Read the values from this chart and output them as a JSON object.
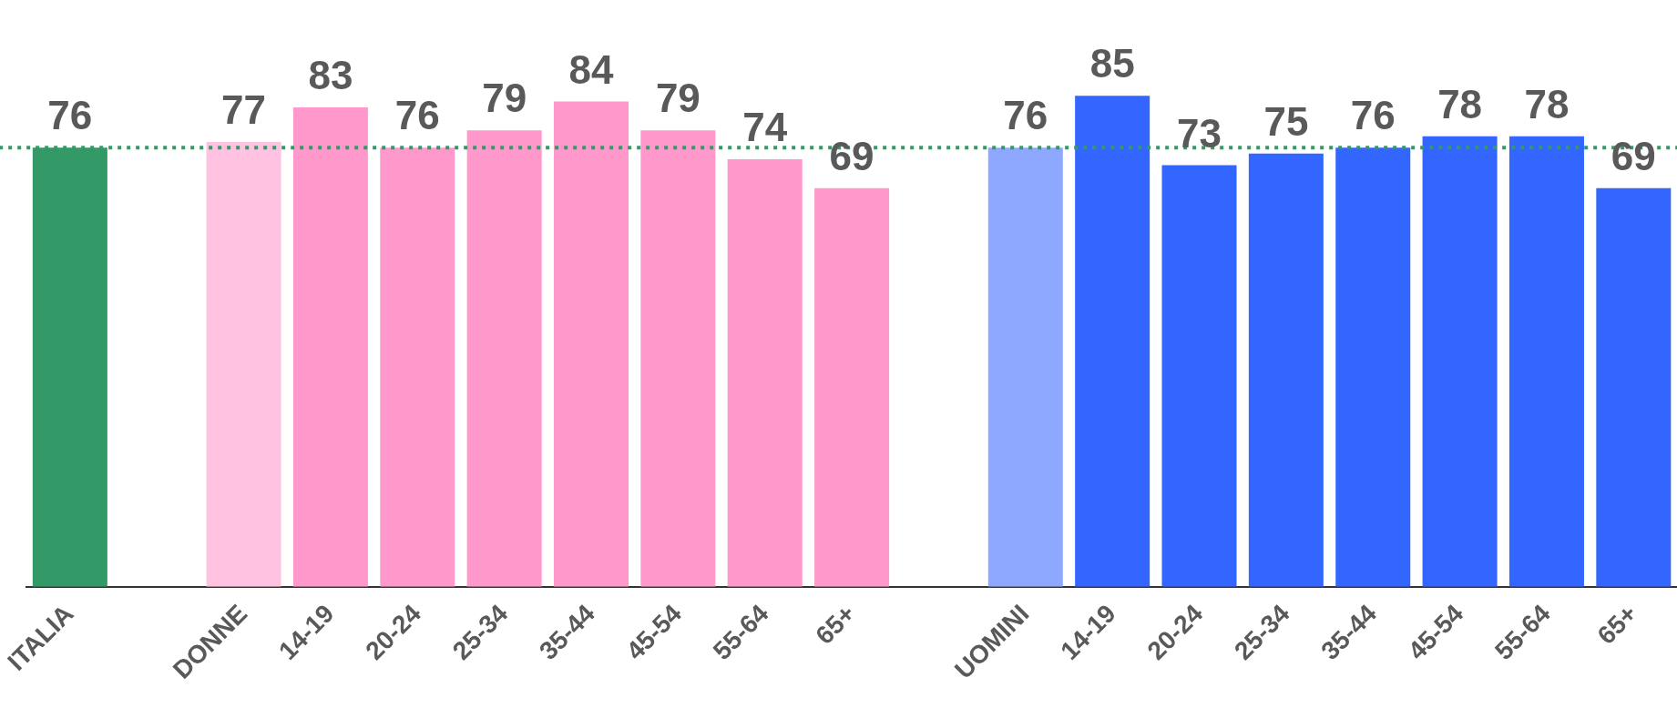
{
  "chart_data": {
    "type": "bar",
    "categories": [
      "ITALIA",
      null,
      "DONNE",
      "14-19",
      "20-24",
      "25-34",
      "35-44",
      "45-54",
      "55-64",
      "65+",
      null,
      "UOMINI",
      "14-19",
      "20-24",
      "25-34",
      "35-44",
      "45-54",
      "55-64",
      "65+"
    ],
    "values": [
      76,
      null,
      77,
      83,
      76,
      79,
      84,
      79,
      74,
      69,
      null,
      76,
      85,
      73,
      75,
      76,
      78,
      78,
      69
    ],
    "colors": [
      "#339966",
      null,
      "#ffc2e0",
      "#ff99cc",
      "#ff99cc",
      "#ff99cc",
      "#ff99cc",
      "#ff99cc",
      "#ff99cc",
      "#ff99cc",
      null,
      "#8fa8ff",
      "#3366ff",
      "#3366ff",
      "#3366ff",
      "#3366ff",
      "#3366ff",
      "#3366ff",
      "#3366ff"
    ],
    "ref_lines": [
      {
        "axis": "y",
        "value": 76,
        "color": "#339966",
        "line_style": "dotted"
      }
    ],
    "data_labels": true,
    "grid": false,
    "legend": false
  }
}
